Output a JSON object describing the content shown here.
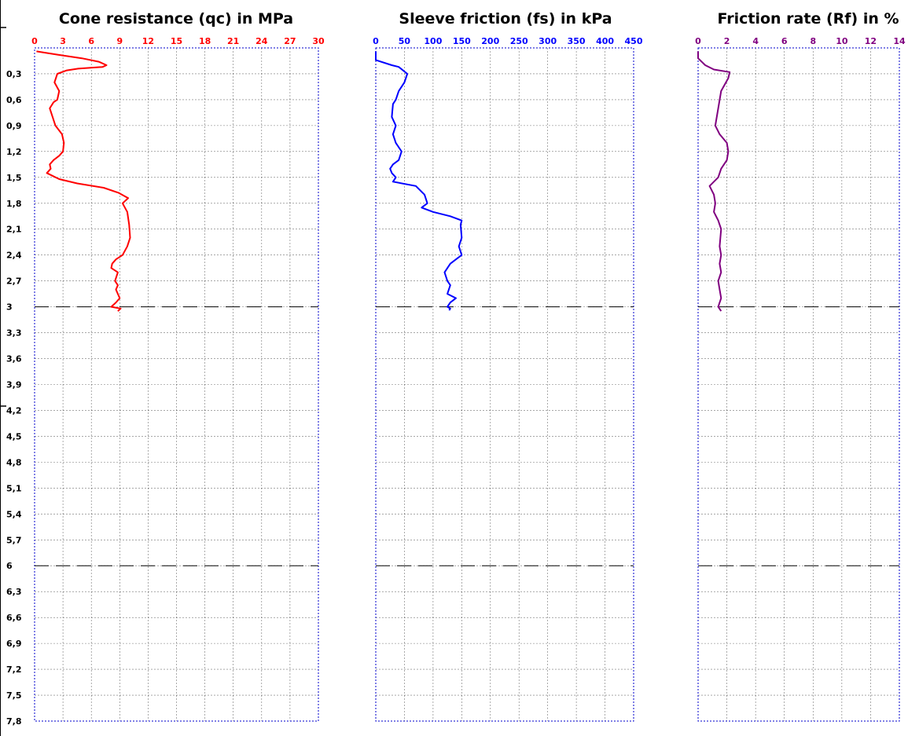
{
  "colors": {
    "qc": "#ff0000",
    "fs": "#0000ff",
    "rf": "#800080",
    "grid": "#000000",
    "frame": "#0000cc",
    "marker": "#000000"
  },
  "depth_ticks": [
    "0,3",
    "0,6",
    "0,9",
    "1,2",
    "1,5",
    "1,8",
    "2,1",
    "2,4",
    "2,7",
    "3",
    "3,3",
    "3,6",
    "3,9",
    "4,2",
    "4,5",
    "4,8",
    "5,1",
    "5,4",
    "5,7",
    "6",
    "6,3",
    "6,6",
    "6,9",
    "7,2",
    "7,5",
    "7,8"
  ],
  "chart_data": [
    {
      "type": "line",
      "title": "Cone resistance (qc) in MPa",
      "x_ticks": [
        "0",
        "3",
        "6",
        "9",
        "12",
        "15",
        "18",
        "21",
        "24",
        "27",
        "30"
      ],
      "xlim": [
        0,
        30
      ],
      "ylim": [
        0,
        7.8
      ],
      "y_inverted": true,
      "grid": true,
      "depth_markers": [
        3,
        6
      ],
      "series": [
        {
          "x": [
            0.2,
            2.5,
            5.0,
            6.8,
            7.6,
            7.2,
            4.6,
            3.4,
            2.4,
            2.1,
            2.6,
            2.4,
            2.0,
            1.6,
            2.2,
            2.9,
            3.1,
            3.0,
            2.6,
            2.0,
            1.6,
            1.7,
            1.3,
            2.6,
            4.5,
            7.3,
            8.9,
            9.9,
            9.3,
            9.8,
            10.0,
            10.1,
            9.8,
            9.3,
            8.6,
            8.2,
            8.1,
            8.8,
            8.5,
            8.8,
            8.6,
            8.8,
            9.0,
            8.6,
            8.1,
            9.1,
            8.8
          ],
          "y": [
            0.04,
            0.08,
            0.12,
            0.16,
            0.2,
            0.22,
            0.24,
            0.26,
            0.3,
            0.4,
            0.5,
            0.6,
            0.63,
            0.7,
            0.9,
            1.0,
            1.1,
            1.2,
            1.25,
            1.3,
            1.35,
            1.4,
            1.45,
            1.52,
            1.57,
            1.62,
            1.68,
            1.74,
            1.8,
            1.9,
            2.05,
            2.2,
            2.3,
            2.4,
            2.45,
            2.5,
            2.55,
            2.6,
            2.7,
            2.75,
            2.8,
            2.85,
            2.9,
            2.95,
            3.0,
            3.02,
            3.05
          ]
        }
      ]
    },
    {
      "type": "line",
      "title": "Sleeve friction (fs) in kPa",
      "x_ticks": [
        "0",
        "50",
        "100",
        "150",
        "200",
        "250",
        "300",
        "350",
        "400",
        "450"
      ],
      "xlim": [
        0,
        450
      ],
      "ylim": [
        0,
        7.8
      ],
      "y_inverted": true,
      "grid": true,
      "depth_markers": [
        3,
        6
      ],
      "series": [
        {
          "x": [
            0,
            0,
            28,
            40,
            55,
            50,
            40,
            35,
            30,
            28,
            35,
            30,
            35,
            45,
            40,
            30,
            25,
            28,
            35,
            30,
            70,
            85,
            90,
            80,
            100,
            130,
            150,
            148,
            150,
            145,
            150,
            140,
            130,
            120,
            125,
            130,
            125,
            140,
            130,
            125,
            130,
            128
          ],
          "y": [
            0.04,
            0.14,
            0.2,
            0.22,
            0.3,
            0.4,
            0.5,
            0.6,
            0.65,
            0.8,
            0.9,
            1.0,
            1.1,
            1.2,
            1.3,
            1.35,
            1.4,
            1.45,
            1.5,
            1.55,
            1.6,
            1.7,
            1.8,
            1.85,
            1.9,
            1.95,
            2.0,
            2.05,
            2.2,
            2.3,
            2.4,
            2.45,
            2.5,
            2.6,
            2.7,
            2.75,
            2.85,
            2.9,
            2.95,
            3.0,
            3.02,
            3.04
          ]
        }
      ]
    },
    {
      "type": "line",
      "title": "Friction rate (Rf) in %",
      "x_ticks": [
        "0",
        "2",
        "4",
        "6",
        "8",
        "10",
        "12",
        "14"
      ],
      "xlim": [
        0,
        14
      ],
      "ylim": [
        0,
        7.8
      ],
      "y_inverted": true,
      "grid": true,
      "depth_markers": [
        3,
        6
      ],
      "series": [
        {
          "x": [
            0,
            0,
            0.5,
            1.1,
            2.2,
            2.1,
            1.6,
            1.4,
            1.2,
            1.5,
            2.0,
            2.1,
            2.0,
            1.6,
            1.4,
            1.1,
            0.8,
            1.1,
            1.2,
            1.1,
            1.4,
            1.6,
            1.5,
            1.6,
            1.5,
            1.6,
            1.4,
            1.5,
            1.6,
            1.4,
            1.6
          ],
          "y": [
            0.04,
            0.12,
            0.2,
            0.25,
            0.28,
            0.35,
            0.5,
            0.7,
            0.9,
            1.0,
            1.1,
            1.2,
            1.3,
            1.4,
            1.5,
            1.55,
            1.6,
            1.7,
            1.8,
            1.9,
            2.0,
            2.1,
            2.3,
            2.4,
            2.5,
            2.6,
            2.7,
            2.8,
            2.9,
            3.0,
            3.05
          ]
        }
      ]
    }
  ]
}
